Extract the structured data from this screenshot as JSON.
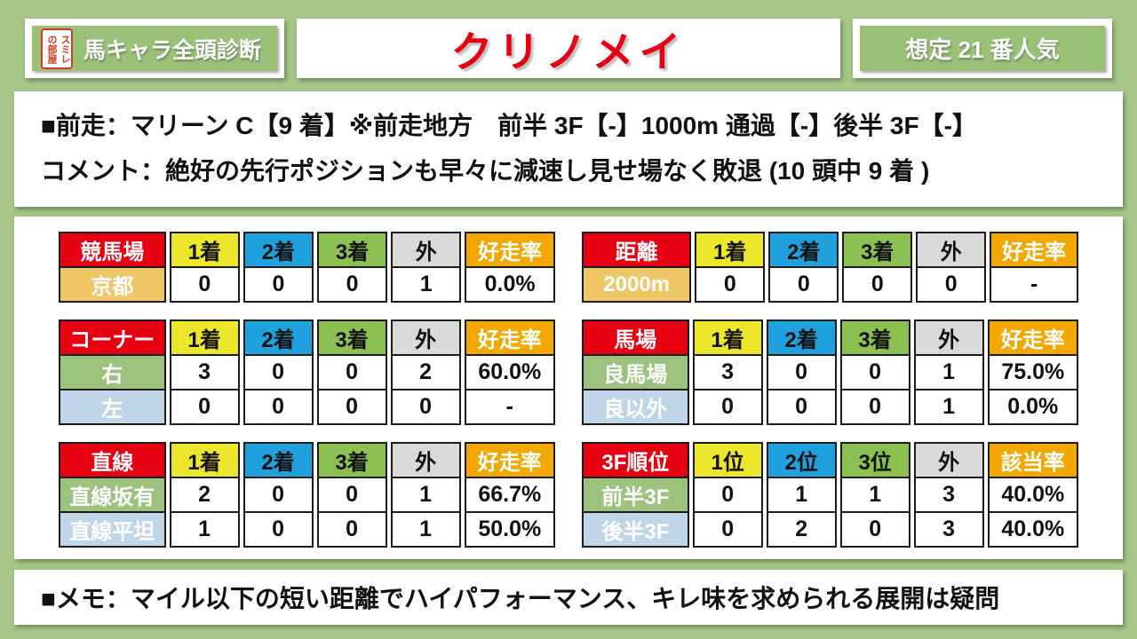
{
  "header": {
    "brand_label": "馬キャラ全頭診断",
    "logo": {
      "right_column": "スミレ",
      "left_column": "の部屋"
    },
    "title": "クリノメイ",
    "popularity_badge": "想定 21 番人気"
  },
  "prev_race": {
    "line1": "■前走：マリーン C【9 着】※前走地方　前半 3F【-】1000m 通過【-】後半 3F【-】",
    "line2": "コメント：絶好の先行ポジションも早々に減速し見せ場なく敗退 (10 頭中 9 着 )"
  },
  "memo": "■メモ：マイル以下の短い距離でハイパフォーマンス、キレ味を求められる展開は疑問",
  "colors": {
    "page_background": "#a6c789",
    "badge_green": "#9bc179",
    "title_red": "#e60012",
    "header_red": "#e60012",
    "header_yellow": "#ece72b",
    "header_blue": "#1ea1dc",
    "header_green": "#8cc152",
    "header_gray": "#d9d9d9",
    "header_orange": "#f3a800",
    "row_gold": "#f0c766",
    "row_green": "#9cc37e",
    "row_blue": "#c0d5e8",
    "stamp_red": "#cf3a23"
  },
  "tables": [
    {
      "columns": [
        "競馬場",
        "1着",
        "2着",
        "3着",
        "外",
        "好走率"
      ],
      "rows": [
        {
          "label": "京都",
          "style": "gold",
          "values": [
            "0",
            "0",
            "0",
            "1",
            "0.0%"
          ]
        }
      ]
    },
    {
      "columns": [
        "距離",
        "1着",
        "2着",
        "3着",
        "外",
        "好走率"
      ],
      "rows": [
        {
          "label": "2000m",
          "style": "gold",
          "values": [
            "0",
            "0",
            "0",
            "0",
            "-"
          ]
        }
      ]
    },
    {
      "columns": [
        "コーナー",
        "1着",
        "2着",
        "3着",
        "外",
        "好走率"
      ],
      "rows": [
        {
          "label": "右",
          "style": "green",
          "values": [
            "3",
            "0",
            "0",
            "2",
            "60.0%"
          ]
        },
        {
          "label": "左",
          "style": "blue",
          "values": [
            "0",
            "0",
            "0",
            "0",
            "-"
          ]
        }
      ]
    },
    {
      "columns": [
        "馬場",
        "1着",
        "2着",
        "3着",
        "外",
        "好走率"
      ],
      "rows": [
        {
          "label": "良馬場",
          "style": "green",
          "values": [
            "3",
            "0",
            "0",
            "1",
            "75.0%"
          ]
        },
        {
          "label": "良以外",
          "style": "blue",
          "values": [
            "0",
            "0",
            "0",
            "1",
            "0.0%"
          ]
        }
      ]
    },
    {
      "columns": [
        "直線",
        "1着",
        "2着",
        "3着",
        "外",
        "好走率"
      ],
      "rows": [
        {
          "label": "直線坂有",
          "style": "green",
          "values": [
            "2",
            "0",
            "0",
            "1",
            "66.7%"
          ]
        },
        {
          "label": "直線平坦",
          "style": "blue",
          "values": [
            "1",
            "0",
            "0",
            "1",
            "50.0%"
          ]
        }
      ]
    },
    {
      "columns": [
        "3F順位",
        "1位",
        "2位",
        "3位",
        "外",
        "該当率"
      ],
      "rows": [
        {
          "label": "前半3F",
          "style": "green",
          "values": [
            "0",
            "1",
            "1",
            "3",
            "40.0%"
          ]
        },
        {
          "label": "後半3F",
          "style": "blue",
          "values": [
            "0",
            "2",
            "0",
            "3",
            "40.0%"
          ]
        }
      ]
    }
  ]
}
